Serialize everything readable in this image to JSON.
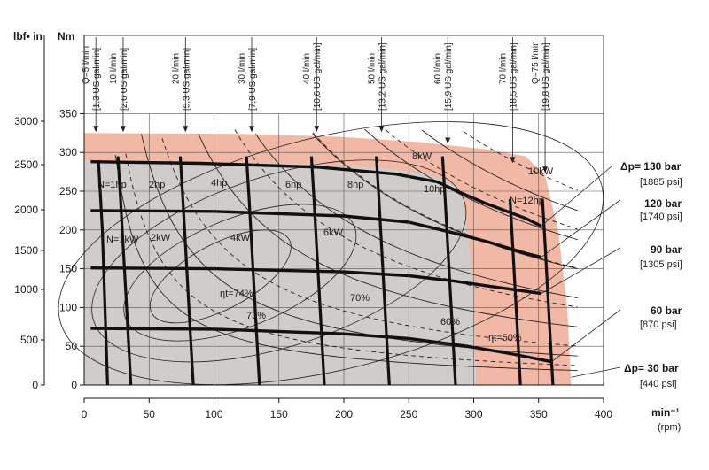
{
  "chart_data": {
    "type": "line",
    "title": "",
    "units": {
      "torque_left": "lbf• in",
      "torque_right": "Nm",
      "speed": "min⁻¹",
      "speed_alt": "(rpm)"
    },
    "x_axis": {
      "ticks": [
        0,
        50,
        100,
        150,
        200,
        250,
        300,
        350,
        400
      ],
      "range": [
        0,
        400
      ]
    },
    "y_axis_nm": {
      "ticks": [
        0,
        50,
        100,
        150,
        200,
        250,
        300,
        350
      ],
      "range": [
        0,
        350
      ]
    },
    "y_axis_lbfin": {
      "ticks": [
        "0",
        "500",
        "1000",
        "1500",
        "2000",
        "2500",
        "3000"
      ]
    },
    "envelope": {
      "intermittent_max_torque_nm": 325,
      "continuous_max_torque_nm": 290,
      "max_speed_rpm": 375,
      "continuous_max_speed_rpm": 302,
      "colors": {
        "intermittent": "#f2b8a6",
        "continuous": "#cfcdcb"
      }
    },
    "flow_lines": [
      {
        "label": "Q=5 l/min",
        "sub": "[1,3 US gal/min]",
        "rpm": 9
      },
      {
        "label": "10 l/min",
        "sub": "[2,6 US gal/min]",
        "rpm": 30
      },
      {
        "label": "20 l/min",
        "sub": "[5,3 US gal/min]",
        "rpm": 78
      },
      {
        "label": "30 l/min",
        "sub": "[7,9 US gal/min]",
        "rpm": 129
      },
      {
        "label": "40 l/min",
        "sub": "[10,6 US gal/min]",
        "rpm": 179
      },
      {
        "label": "50 l/min",
        "sub": "[13,2 US gal/min]",
        "rpm": 229
      },
      {
        "label": "60 l/min",
        "sub": "[15,9 US gal/min]",
        "rpm": 280
      },
      {
        "label": "70 l/min",
        "sub": "[18,5 US gal/min]",
        "rpm": 330
      },
      {
        "label": "Q=75 l/min",
        "sub": "[19,8 US gal/min]",
        "rpm": 355
      }
    ],
    "pressure_lines": [
      {
        "label": "Δp= 130 bar",
        "sub": "[1885 psi]",
        "torque_nm": [
          288,
          284,
          272,
          240
        ]
      },
      {
        "label": "120 bar",
        "sub": "[1740 psi]",
        "torque_nm": [
          225,
          224,
          215,
          195
        ]
      },
      {
        "label": "90 bar",
        "sub": "[1305 psi]",
        "torque_nm": [
          151,
          149,
          144,
          134
        ]
      },
      {
        "label": "60 bar",
        "sub": "[870 psi]",
        "torque_nm": [
          73,
          71,
          63,
          47
        ]
      },
      {
        "label": "Δp= 30 bar",
        "sub": "[440 psi]",
        "torque_nm": []
      }
    ],
    "power_kw_labels": [
      "N=1kW",
      "2kW",
      "4kW",
      "6kW",
      "8kW",
      "10kW"
    ],
    "power_hp_labels": [
      "N=1hp",
      "2hp",
      "4hp",
      "6hp",
      "8hp",
      "10hp",
      "N=12hp"
    ],
    "efficiency_labels": [
      "ηt=74%",
      "73%",
      "70%",
      "60%",
      "ηt=50%"
    ]
  }
}
